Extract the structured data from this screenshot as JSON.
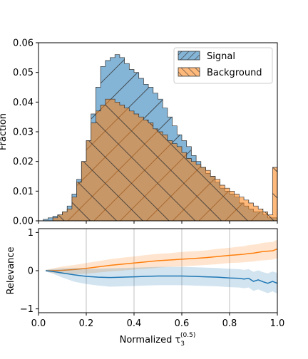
{
  "chart_data": [
    {
      "type": "step-histogram",
      "xlabel": "Normalized τ",
      "xlabel_sub": "3",
      "xlabel_sup": "(0.5)",
      "ylabel": "Fraction",
      "xlim": [
        0.0,
        1.0
      ],
      "ylim": [
        0.0,
        0.06
      ],
      "yticks": [
        "0.00",
        "0.01",
        "0.02",
        "0.03",
        "0.04",
        "0.05",
        "0.06"
      ],
      "legend_position": "top-right",
      "bin_width": 0.02,
      "series": [
        {
          "name": "Signal",
          "color": "#1f77b4",
          "hatch": "/",
          "values": [
            0.0,
            0.0005,
            0.001,
            0.0015,
            0.002,
            0.003,
            0.005,
            0.009,
            0.014,
            0.02,
            0.027,
            0.036,
            0.045,
            0.052,
            0.054,
            0.055,
            0.056,
            0.055,
            0.053,
            0.051,
            0.05,
            0.048,
            0.046,
            0.045,
            0.043,
            0.041,
            0.038,
            0.035,
            0.032,
            0.029,
            0.027,
            0.025,
            0.022,
            0.02,
            0.018,
            0.016,
            0.015,
            0.013,
            0.011,
            0.01,
            0.009,
            0.008,
            0.006,
            0.005,
            0.004,
            0.003,
            0.003,
            0.002,
            0.001,
            0.001
          ]
        },
        {
          "name": "Background",
          "color": "#ff7f0e",
          "hatch": "\\",
          "values": [
            0.0,
            0.0,
            0.0,
            0.001,
            0.002,
            0.003,
            0.004,
            0.008,
            0.013,
            0.02,
            0.027,
            0.033,
            0.037,
            0.039,
            0.041,
            0.041,
            0.04,
            0.039,
            0.038,
            0.037,
            0.036,
            0.035,
            0.034,
            0.033,
            0.031,
            0.03,
            0.029,
            0.027,
            0.026,
            0.025,
            0.023,
            0.021,
            0.02,
            0.019,
            0.018,
            0.017,
            0.015,
            0.014,
            0.012,
            0.011,
            0.01,
            0.009,
            0.008,
            0.007,
            0.006,
            0.005,
            0.004,
            0.003,
            0.002,
            0.018
          ]
        }
      ]
    },
    {
      "type": "line",
      "xlabel": "Normalized τ",
      "xlabel_sub": "3",
      "xlabel_sup": "(0.5)",
      "ylabel": "Relevance",
      "xlim": [
        0.0,
        1.0
      ],
      "ylim": [
        -1.1,
        1.1
      ],
      "xticks": [
        "0.0",
        "0.2",
        "0.4",
        "0.6",
        "0.8",
        "1.0"
      ],
      "yticks": [
        "−1",
        "0",
        "1"
      ],
      "grid": "x",
      "x": [
        0.03,
        0.06,
        0.1,
        0.15,
        0.2,
        0.25,
        0.3,
        0.35,
        0.4,
        0.45,
        0.5,
        0.55,
        0.6,
        0.65,
        0.7,
        0.75,
        0.8,
        0.84,
        0.86,
        0.88,
        0.9,
        0.92,
        0.94,
        0.96,
        0.98,
        1.0
      ],
      "series": [
        {
          "color": "#ff7f0e",
          "values": [
            0.0,
            0.0,
            0.01,
            0.03,
            0.06,
            0.1,
            0.14,
            0.17,
            0.2,
            0.23,
            0.26,
            0.28,
            0.3,
            0.32,
            0.34,
            0.37,
            0.4,
            0.42,
            0.43,
            0.45,
            0.46,
            0.48,
            0.5,
            0.51,
            0.52,
            0.57
          ],
          "band_halfwidth": [
            0.02,
            0.06,
            0.1,
            0.12,
            0.14,
            0.15,
            0.16,
            0.17,
            0.17,
            0.18,
            0.18,
            0.18,
            0.19,
            0.19,
            0.19,
            0.2,
            0.2,
            0.21,
            0.21,
            0.22,
            0.22,
            0.22,
            0.23,
            0.23,
            0.23,
            0.24
          ]
        },
        {
          "color": "#1f77b4",
          "values": [
            0.0,
            -0.02,
            -0.06,
            -0.11,
            -0.15,
            -0.17,
            -0.18,
            -0.17,
            -0.16,
            -0.15,
            -0.14,
            -0.14,
            -0.14,
            -0.15,
            -0.16,
            -0.17,
            -0.19,
            -0.2,
            -0.22,
            -0.2,
            -0.28,
            -0.24,
            -0.29,
            -0.33,
            -0.28,
            -0.33
          ],
          "band_halfwidth": [
            0.02,
            0.06,
            0.12,
            0.18,
            0.2,
            0.22,
            0.24,
            0.24,
            0.24,
            0.24,
            0.24,
            0.24,
            0.24,
            0.24,
            0.24,
            0.24,
            0.24,
            0.24,
            0.24,
            0.24,
            0.25,
            0.25,
            0.25,
            0.26,
            0.26,
            0.27
          ]
        }
      ]
    }
  ]
}
